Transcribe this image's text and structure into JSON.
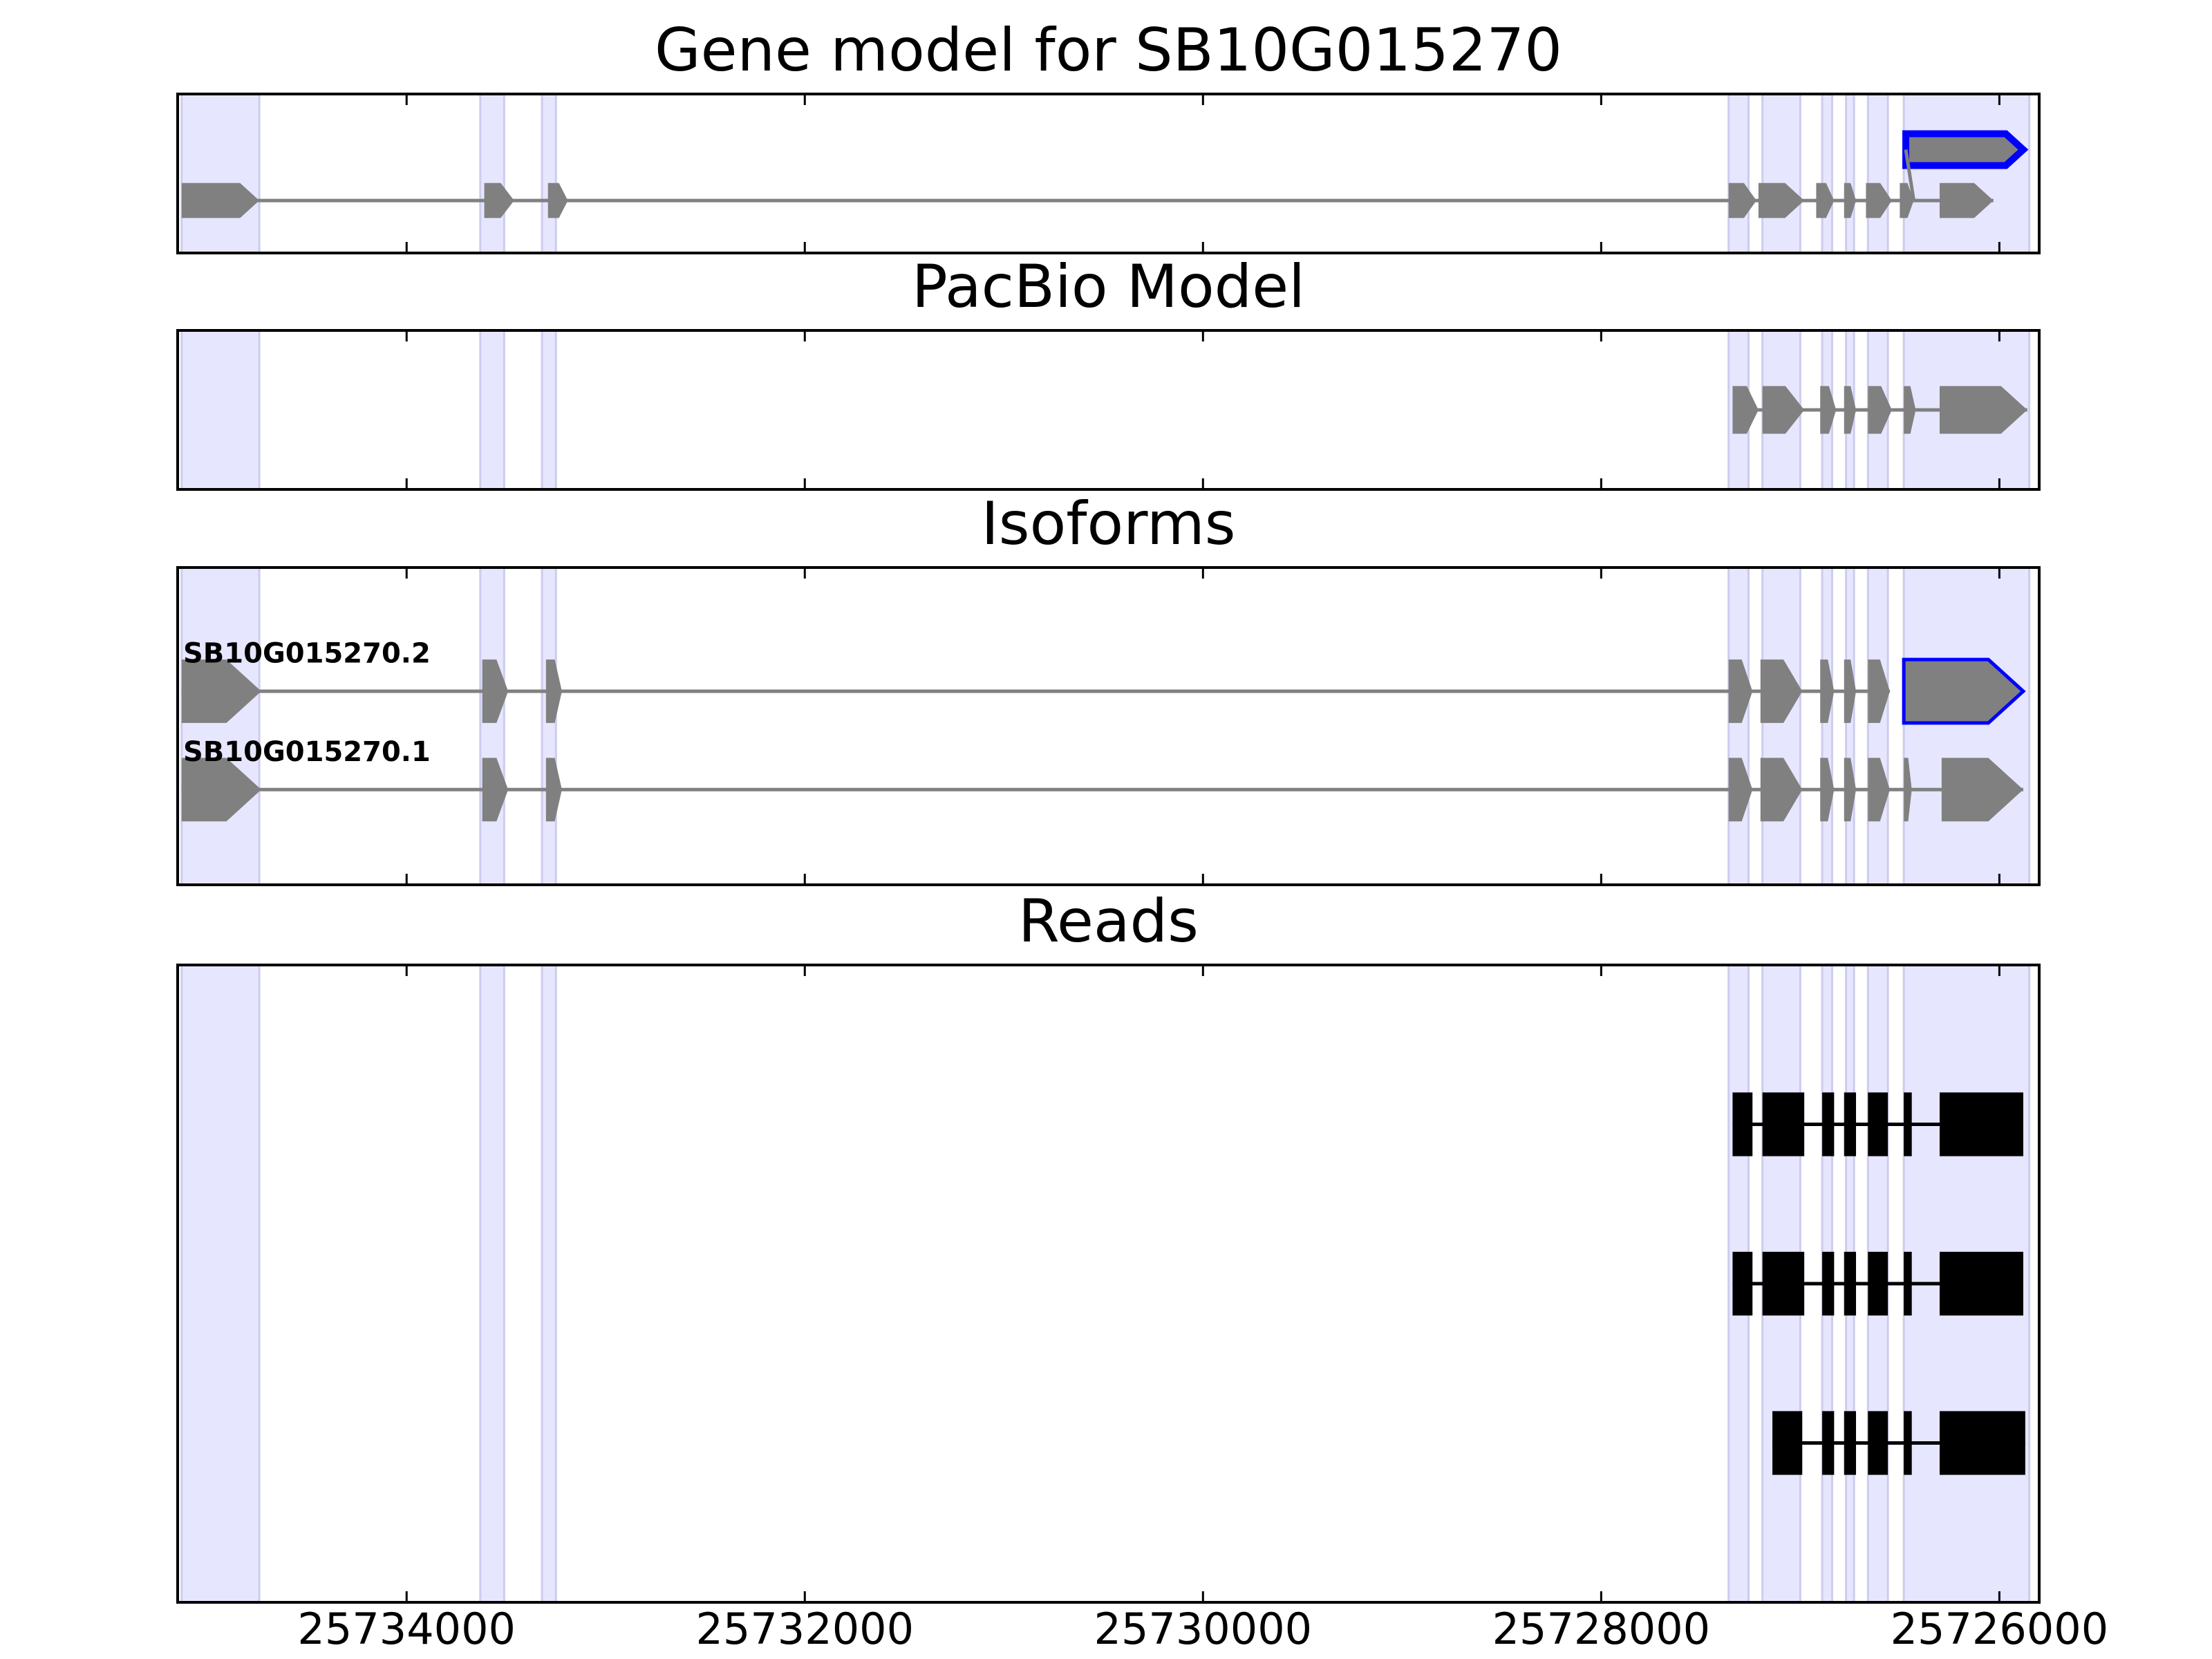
{
  "chart_data": {
    "type": "gene-model",
    "title": "Gene model for SB10G015270",
    "x_axis": {
      "reversed": true,
      "ticks": [
        25734000,
        25732000,
        25730000,
        25728000,
        25726000
      ],
      "tick_labels": [
        "25734000",
        "25732000",
        "25730000",
        "25728000",
        "25726000"
      ],
      "xlim": [
        25735150,
        25725800
      ]
    },
    "colors": {
      "exon": "#808080",
      "highlight": "#0000ff",
      "read": "#000000",
      "band": "#e6e6ff",
      "band_edge": "#ccccee"
    },
    "highlight_bands": [
      [
        25735130,
        25734740
      ],
      [
        25733630,
        25733510
      ],
      [
        25733320,
        25733250
      ],
      [
        25727360,
        25727260
      ],
      [
        25727190,
        25727000
      ],
      [
        25726890,
        25726840
      ],
      [
        25726770,
        25726730
      ],
      [
        25726660,
        25726560
      ],
      [
        25726480,
        25725850
      ]
    ],
    "panels": [
      {
        "title": "Gene model for SB10G015270",
        "tracks": [
          {
            "y": 0.67,
            "h": 0.22,
            "color": "#808080",
            "exons": [
              [
                25735130,
                25734740
              ],
              [
                25733610,
                25733460
              ],
              [
                25733290,
                25733190
              ],
              [
                25727360,
                25727220
              ],
              [
                25727210,
                25726980
              ],
              [
                25726920,
                25726830
              ],
              [
                25726780,
                25726720
              ],
              [
                25726670,
                25726540
              ],
              [
                25726500,
                25726430
              ],
              [
                25726300,
                25726030
              ]
            ]
          },
          {
            "y": 0.35,
            "h": 0.2,
            "color": "#0000ff",
            "highlight": true,
            "exons": [
              [
                25726470,
                25725880
              ]
            ]
          }
        ],
        "connector": [
          [
            25726430,
            0.67
          ],
          [
            25726470,
            0.35
          ]
        ]
      },
      {
        "title": "PacBio Model",
        "tracks": [
          {
            "y": 0.5,
            "h": 0.3,
            "color": "#808080",
            "exons": [
              [
                25727340,
                25727210
              ],
              [
                25727190,
                25726980
              ],
              [
                25726900,
                25726820
              ],
              [
                25726780,
                25726720
              ],
              [
                25726660,
                25726540
              ],
              [
                25726480,
                25726420
              ],
              [
                25726300,
                25725860
              ]
            ]
          }
        ]
      },
      {
        "title": "Isoforms",
        "tracks": [
          {
            "label": "SB10G015270.2",
            "y": 0.39,
            "h": 0.2,
            "color": "#808080",
            "exons": [
              [
                25735130,
                25734730
              ],
              [
                25733620,
                25733490
              ],
              [
                25733300,
                25733220
              ],
              [
                25727360,
                25727240
              ],
              [
                25727200,
                25726990
              ],
              [
                25726900,
                25726830
              ],
              [
                25726780,
                25726720
              ],
              [
                25726660,
                25726550
              ]
            ]
          },
          {
            "label": "SB10G015270.2",
            "y": 0.39,
            "h": 0.2,
            "color": "#0000ff",
            "highlight": true,
            "exons": [
              [
                25726480,
                25725880
              ]
            ]
          },
          {
            "label": "SB10G015270.1",
            "y": 0.7,
            "h": 0.2,
            "color": "#808080",
            "exons": [
              [
                25735130,
                25734730
              ],
              [
                25733620,
                25733490
              ],
              [
                25733300,
                25733220
              ],
              [
                25727360,
                25727240
              ],
              [
                25727200,
                25726990
              ],
              [
                25726900,
                25726830
              ],
              [
                25726780,
                25726720
              ],
              [
                25726660,
                25726550
              ],
              [
                25726480,
                25726440
              ],
              [
                25726290,
                25725880
              ]
            ]
          }
        ],
        "labels": [
          {
            "text": "SB10G015270.2",
            "x": 25735150,
            "y": 0.3
          },
          {
            "text": "SB10G015270.1",
            "x": 25735150,
            "y": 0.61
          }
        ]
      },
      {
        "title": "Reads",
        "reads": [
          {
            "y": 0.25,
            "h": 0.1,
            "exons": [
              [
                25727340,
                25727240
              ],
              [
                25727190,
                25726980
              ],
              [
                25726890,
                25726830
              ],
              [
                25726780,
                25726720
              ],
              [
                25726660,
                25726560
              ],
              [
                25726480,
                25726440
              ],
              [
                25726300,
                25725880
              ]
            ]
          },
          {
            "y": 0.5,
            "h": 0.1,
            "exons": [
              [
                25727340,
                25727240
              ],
              [
                25727190,
                25726980
              ],
              [
                25726890,
                25726830
              ],
              [
                25726780,
                25726720
              ],
              [
                25726660,
                25726560
              ],
              [
                25726480,
                25726440
              ],
              [
                25726300,
                25725880
              ]
            ]
          },
          {
            "y": 0.75,
            "h": 0.1,
            "exons": [
              [
                25727140,
                25726990
              ],
              [
                25726890,
                25726830
              ],
              [
                25726780,
                25726720
              ],
              [
                25726660,
                25726560
              ],
              [
                25726480,
                25726440
              ],
              [
                25726300,
                25725870
              ]
            ]
          }
        ]
      }
    ]
  }
}
